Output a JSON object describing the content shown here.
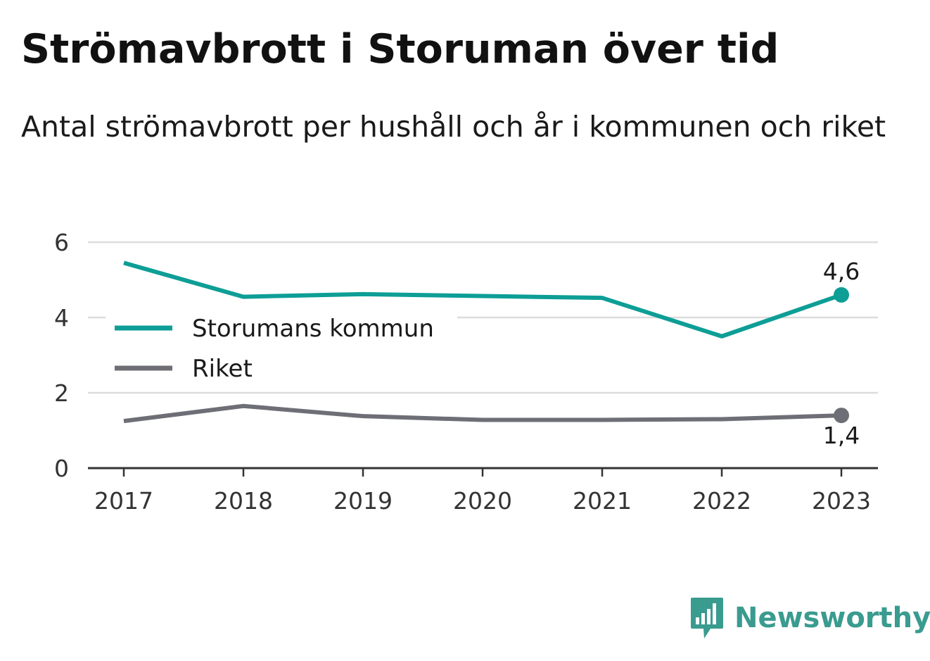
{
  "header": {
    "title": "Strömavbrott i Storuman över tid",
    "subtitle": "Antal strömavbrott per hushåll och år i kommunen och riket"
  },
  "brand": {
    "name": "Newsworthy",
    "logo_icon": "bar-chart-speech-bubble-icon",
    "color": "#3a9b8f"
  },
  "chart_data": {
    "type": "line",
    "x": [
      "2017",
      "2018",
      "2019",
      "2020",
      "2021",
      "2022",
      "2023"
    ],
    "ylim": [
      0,
      6
    ],
    "yticks": [
      0,
      2,
      4,
      6
    ],
    "grid": true,
    "legend_position": "left, inside plot",
    "series": [
      {
        "name": "Storumans kommun",
        "color": "#0d9e96",
        "values": [
          5.45,
          4.55,
          4.62,
          4.57,
          4.52,
          3.5,
          4.6
        ],
        "end_label": "4,6"
      },
      {
        "name": "Riket",
        "color": "#6e6e76",
        "values": [
          1.25,
          1.65,
          1.38,
          1.28,
          1.28,
          1.3,
          1.4
        ],
        "end_label": "1,4"
      }
    ]
  }
}
